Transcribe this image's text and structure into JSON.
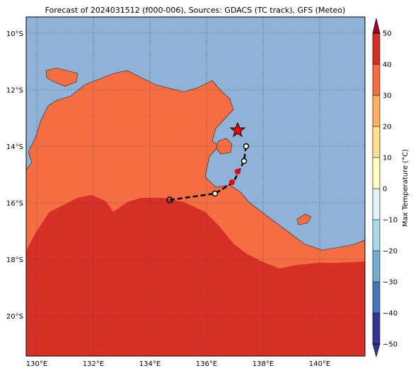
{
  "title": "Forecast of 2024031512 (f000-006), Sources: GDACS (TC track), GFS (Meteo)",
  "map": {
    "lon_labels": [
      "130°E",
      "132°E",
      "134°E",
      "136°E",
      "138°E",
      "140°E"
    ],
    "lat_labels": [
      "10°S",
      "12°S",
      "14°S",
      "16°S",
      "18°S",
      "20°S"
    ]
  },
  "colorbar": {
    "label": "Max Temperature (°C)",
    "ticks": [
      "50",
      "40",
      "30",
      "20",
      "10",
      "0",
      "−10",
      "−20",
      "−30",
      "−40",
      "−50"
    ]
  }
}
